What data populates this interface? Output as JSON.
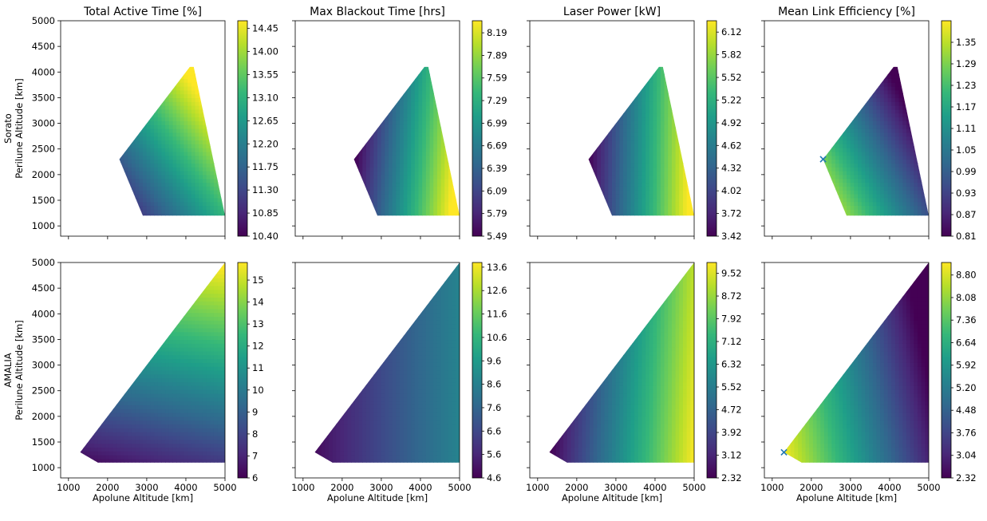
{
  "figure": {
    "row_labels": [
      [
        "Sorato",
        "Perilune Altitude [km]"
      ],
      [
        "AMALIA",
        "Perilune Altitude [km]"
      ]
    ],
    "xlabel": "Apolune Altitude [km]"
  },
  "colormap": {
    "name": "viridis",
    "stops": [
      "#440154",
      "#482878",
      "#3e4989",
      "#31688e",
      "#26828e",
      "#1f9e89",
      "#35b779",
      "#6ece58",
      "#b5de2b",
      "#fde725"
    ]
  },
  "marker_color": "#1f77b4",
  "chart_data": [
    {
      "type": "heatmap",
      "title": "Total Active Time [%]",
      "ylabel": "Sorato\nPerilune Altitude [km]",
      "xlabel": "",
      "xlim": [
        800,
        5000
      ],
      "ylim": [
        800,
        5000
      ],
      "xticks": [
        "1000",
        "2000",
        "3000",
        "4000",
        "5000"
      ],
      "show_xticklabels": false,
      "yticks": [
        "1000",
        "1500",
        "2000",
        "2500",
        "3000",
        "3500",
        "4000",
        "4500",
        "5000"
      ],
      "show_yticklabels": true,
      "region": {
        "apex": [
          2300,
          2300
        ],
        "top": [
          4100,
          4100
        ],
        "bottom_left": [
          2900,
          1200
        ],
        "bottom_right": [
          5000,
          1200
        ],
        "right_x_at_top": 4200
      },
      "field": "s_active",
      "colorbar": {
        "range": [
          10.4,
          14.6
        ],
        "ticks": [
          "10.40",
          "10.85",
          "11.30",
          "11.75",
          "12.20",
          "12.65",
          "13.10",
          "13.55",
          "14.00",
          "14.45"
        ]
      }
    },
    {
      "type": "heatmap",
      "title": "Max Blackout Time [hrs]",
      "ylabel": "",
      "xlabel": "",
      "xlim": [
        800,
        5000
      ],
      "ylim": [
        800,
        5000
      ],
      "xticks": [
        "1000",
        "2000",
        "3000",
        "4000",
        "5000"
      ],
      "show_xticklabels": false,
      "yticks": [
        "1000",
        "1500",
        "2000",
        "2500",
        "3000",
        "3500",
        "4000",
        "4500",
        "5000"
      ],
      "show_yticklabels": false,
      "region": {
        "apex": [
          2300,
          2300
        ],
        "top": [
          4100,
          4100
        ],
        "bottom_left": [
          2900,
          1200
        ],
        "bottom_right": [
          5000,
          1200
        ],
        "right_x_at_top": 4200
      },
      "field": "s_blackout",
      "colorbar": {
        "range": [
          5.49,
          8.35
        ],
        "ticks": [
          "5.49",
          "5.79",
          "6.09",
          "6.39",
          "6.69",
          "6.99",
          "7.29",
          "7.59",
          "7.89",
          "8.19"
        ]
      }
    },
    {
      "type": "heatmap",
      "title": "Laser Power [kW]",
      "ylabel": "",
      "xlabel": "",
      "xlim": [
        800,
        5000
      ],
      "ylim": [
        800,
        5000
      ],
      "xticks": [
        "1000",
        "2000",
        "3000",
        "4000",
        "5000"
      ],
      "show_xticklabels": false,
      "yticks": [
        "1000",
        "1500",
        "2000",
        "2500",
        "3000",
        "3500",
        "4000",
        "4500",
        "5000"
      ],
      "show_yticklabels": false,
      "region": {
        "apex": [
          2300,
          2300
        ],
        "top": [
          4100,
          4100
        ],
        "bottom_left": [
          2900,
          1200
        ],
        "bottom_right": [
          5000,
          1200
        ],
        "right_x_at_top": 4200
      },
      "field": "s_power",
      "colorbar": {
        "range": [
          3.42,
          6.27
        ],
        "ticks": [
          "3.42",
          "3.72",
          "4.02",
          "4.32",
          "4.62",
          "4.92",
          "5.22",
          "5.52",
          "5.82",
          "6.12"
        ]
      }
    },
    {
      "type": "heatmap",
      "title": "Mean Link Efficiency [%]",
      "ylabel": "",
      "xlabel": "",
      "xlim": [
        800,
        5000
      ],
      "ylim": [
        800,
        5000
      ],
      "xticks": [
        "1000",
        "2000",
        "3000",
        "4000",
        "5000"
      ],
      "show_xticklabels": false,
      "yticks": [
        "1000",
        "1500",
        "2000",
        "2500",
        "3000",
        "3500",
        "4000",
        "4500",
        "5000"
      ],
      "show_yticklabels": false,
      "region": {
        "apex": [
          2300,
          2300
        ],
        "top": [
          4100,
          4100
        ],
        "bottom_left": [
          2900,
          1200
        ],
        "bottom_right": [
          5000,
          1200
        ],
        "right_x_at_top": 4200
      },
      "field": "s_eff",
      "marker": {
        "x": 2300,
        "y": 2300,
        "symbol": "x"
      },
      "colorbar": {
        "range": [
          0.81,
          1.41
        ],
        "ticks": [
          "0.81",
          "0.87",
          "0.93",
          "0.99",
          "1.05",
          "1.11",
          "1.17",
          "1.23",
          "1.29",
          "1.35"
        ]
      }
    },
    {
      "type": "heatmap",
      "title": "",
      "ylabel": "AMALIA\nPerilune Altitude [km]",
      "xlabel": "Apolune Altitude [km]",
      "xlim": [
        800,
        5000
      ],
      "ylim": [
        800,
        5000
      ],
      "xticks": [
        "1000",
        "2000",
        "3000",
        "4000",
        "5000"
      ],
      "show_xticklabels": true,
      "yticks": [
        "1000",
        "1500",
        "2000",
        "2500",
        "3000",
        "3500",
        "4000",
        "4500",
        "5000"
      ],
      "show_yticklabels": true,
      "region": {
        "apex": [
          1300,
          1300
        ],
        "top": [
          5000,
          5000
        ],
        "bottom_left": [
          1750,
          1100
        ],
        "bottom_right": [
          5000,
          1100
        ],
        "right_x_at_top": 5000
      },
      "field": "a_active",
      "colorbar": {
        "range": [
          6,
          15.8
        ],
        "ticks": [
          "6",
          "7",
          "8",
          "9",
          "10",
          "11",
          "12",
          "13",
          "14",
          "15"
        ]
      }
    },
    {
      "type": "heatmap",
      "title": "",
      "ylabel": "",
      "xlabel": "Apolune Altitude [km]",
      "xlim": [
        800,
        5000
      ],
      "ylim": [
        800,
        5000
      ],
      "xticks": [
        "1000",
        "2000",
        "3000",
        "4000",
        "5000"
      ],
      "show_xticklabels": true,
      "yticks": [
        "1000",
        "1500",
        "2000",
        "2500",
        "3000",
        "3500",
        "4000",
        "4500",
        "5000"
      ],
      "show_yticklabels": false,
      "region": {
        "apex": [
          1300,
          1300
        ],
        "top": [
          5000,
          5000
        ],
        "bottom_left": [
          1750,
          1100
        ],
        "bottom_right": [
          5000,
          1100
        ],
        "right_x_at_top": 5000
      },
      "field": "a_blackout",
      "colorbar": {
        "range": [
          4.6,
          13.8
        ],
        "ticks": [
          "4.6",
          "5.6",
          "6.6",
          "7.6",
          "8.6",
          "9.6",
          "10.6",
          "11.6",
          "12.6",
          "13.6"
        ]
      }
    },
    {
      "type": "heatmap",
      "title": "",
      "ylabel": "",
      "xlabel": "Apolune Altitude [km]",
      "xlim": [
        800,
        5000
      ],
      "ylim": [
        800,
        5000
      ],
      "xticks": [
        "1000",
        "2000",
        "3000",
        "4000",
        "5000"
      ],
      "show_xticklabels": true,
      "yticks": [
        "1000",
        "1500",
        "2000",
        "2500",
        "3000",
        "3500",
        "4000",
        "4500",
        "5000"
      ],
      "show_yticklabels": false,
      "region": {
        "apex": [
          1300,
          1300
        ],
        "top": [
          5000,
          5000
        ],
        "bottom_left": [
          1750,
          1100
        ],
        "bottom_right": [
          5000,
          1100
        ],
        "right_x_at_top": 5000
      },
      "field": "a_power",
      "colorbar": {
        "range": [
          2.32,
          9.9
        ],
        "ticks": [
          "2.32",
          "3.12",
          "3.92",
          "4.72",
          "5.52",
          "6.32",
          "7.12",
          "7.92",
          "8.72",
          "9.52"
        ]
      }
    },
    {
      "type": "heatmap",
      "title": "",
      "ylabel": "",
      "xlabel": "Apolune Altitude [km]",
      "xlim": [
        800,
        5000
      ],
      "ylim": [
        800,
        5000
      ],
      "xticks": [
        "1000",
        "2000",
        "3000",
        "4000",
        "5000"
      ],
      "show_xticklabels": true,
      "yticks": [
        "1000",
        "1500",
        "2000",
        "2500",
        "3000",
        "3500",
        "4000",
        "4500",
        "5000"
      ],
      "show_yticklabels": false,
      "region": {
        "apex": [
          1300,
          1300
        ],
        "top": [
          5000,
          5000
        ],
        "bottom_left": [
          1750,
          1100
        ],
        "bottom_right": [
          5000,
          1100
        ],
        "right_x_at_top": 5000
      },
      "field": "a_eff",
      "marker": {
        "x": 1300,
        "y": 1300,
        "symbol": "x"
      },
      "colorbar": {
        "range": [
          2.32,
          9.2
        ],
        "ticks": [
          "2.32",
          "3.04",
          "3.76",
          "4.48",
          "5.20",
          "5.92",
          "6.64",
          "7.36",
          "8.08",
          "8.80"
        ]
      }
    }
  ]
}
